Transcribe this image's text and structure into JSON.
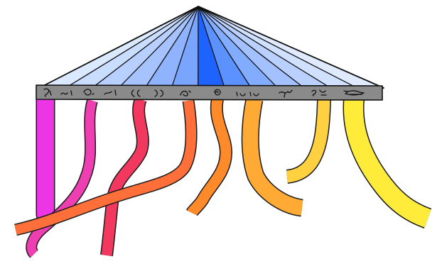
{
  "illustration": {
    "canopy": {
      "outline_color": "#111111",
      "panel_colors": [
        "#dbe9ff",
        "#c9ddff",
        "#b8d0ff",
        "#a6c3ff",
        "#8fb3ff",
        "#7aa5ff",
        "#1f63ff",
        "#5b92ff",
        "#82acff",
        "#a3c0ff",
        "#bad0ff",
        "#d0e0ff",
        "#dfeaff"
      ]
    },
    "bar": {
      "fill_color": "#8a8a8a",
      "outline_color": "#111111",
      "glyph_count": 15
    },
    "ribbons": [
      {
        "name": "magenta-column-ribbon",
        "color": "#ee35e6"
      },
      {
        "name": "pink-ribbon",
        "color": "#ee3fb2"
      },
      {
        "name": "crimson-ribbon",
        "color": "#f2385f"
      },
      {
        "name": "orange-red-ribbon",
        "color": "#ff6f3a"
      },
      {
        "name": "orange-ribbon",
        "color": "#ff8a2a"
      },
      {
        "name": "amber-ribbon",
        "color": "#ffaa35"
      },
      {
        "name": "yellow-orange-ribbon",
        "color": "#ffd03f"
      },
      {
        "name": "yellow-ribbon",
        "color": "#ffec3a"
      }
    ]
  }
}
